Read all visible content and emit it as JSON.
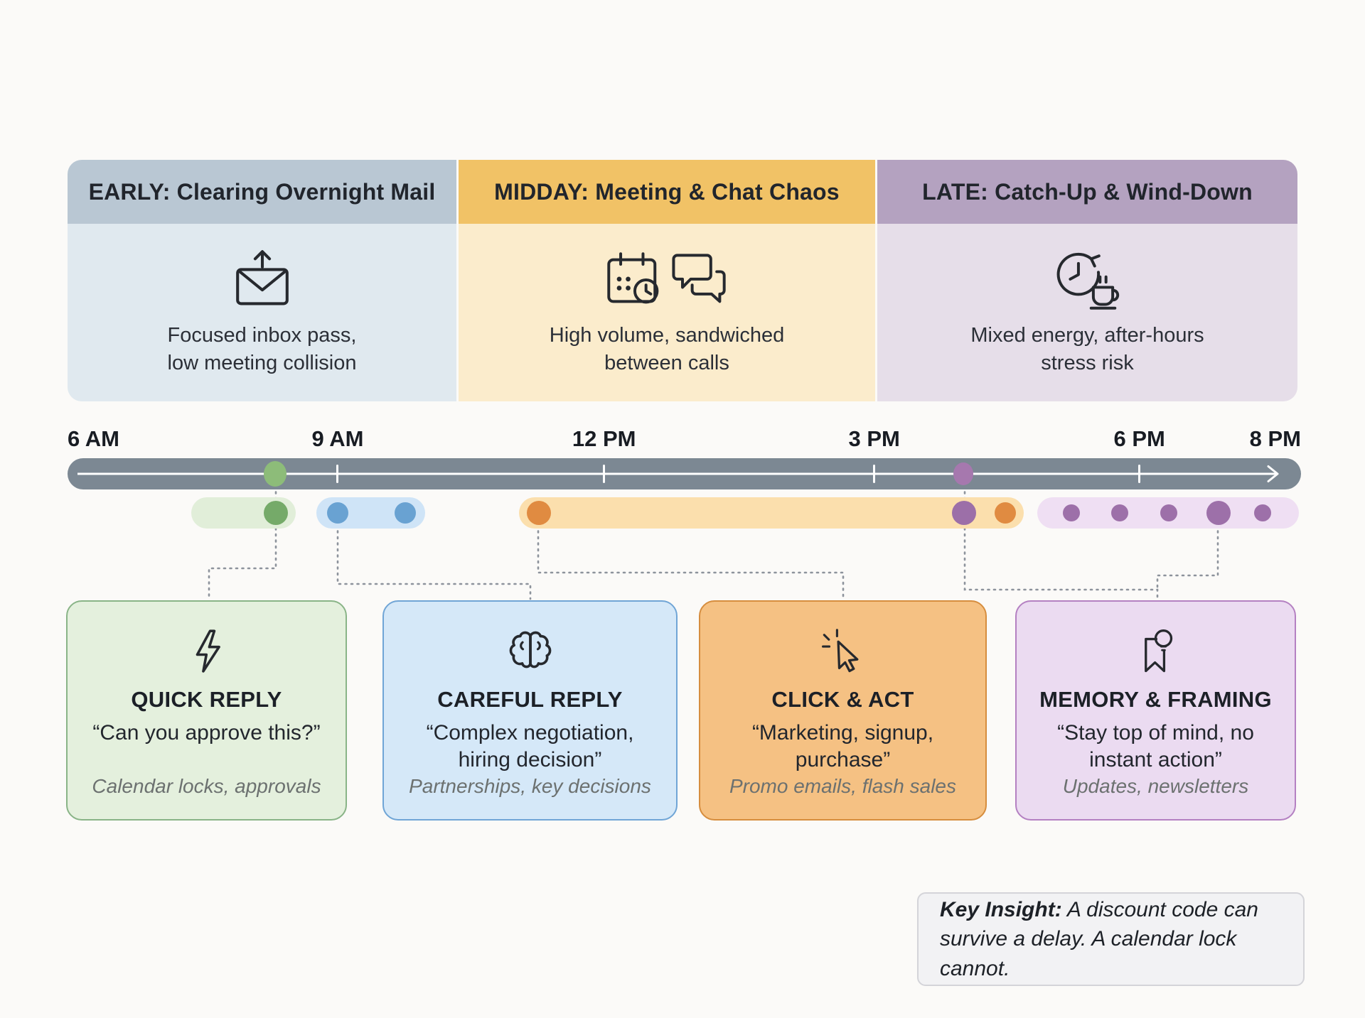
{
  "sections": [
    {
      "title": "EARLY: Clearing Overnight Mail",
      "icon": "mail-send-icon",
      "line1": "Focused inbox pass,",
      "line2": "low meeting collision",
      "header_color": "#b9c7d3",
      "body_color": "#e0e9ef"
    },
    {
      "title": "MIDDAY: Meeting & Chat Chaos",
      "icon": "calendar-clock-chat-icon",
      "line1": "High volume, sandwiched",
      "line2": "between calls",
      "header_color": "#f1c266",
      "body_color": "#fbeccc"
    },
    {
      "title": "LATE: Catch-Up & Wind-Down",
      "icon": "clock-coffee-icon",
      "line1": "Mixed energy, after-hours",
      "line2": "stress risk",
      "header_color": "#b4a2c0",
      "body_color": "#e6dee9"
    }
  ],
  "timeline": {
    "bar_color": "#7c8893",
    "labels": [
      {
        "text": "6 AM",
        "pct": 0,
        "align": "left"
      },
      {
        "text": "9 AM",
        "pct": 21.9,
        "align": "center"
      },
      {
        "text": "12 PM",
        "pct": 43.5,
        "align": "center"
      },
      {
        "text": "3 PM",
        "pct": 65.4,
        "align": "center"
      },
      {
        "text": "6 PM",
        "pct": 86.9,
        "align": "center"
      },
      {
        "text": "8 PM",
        "pct": 100,
        "align": "right"
      }
    ],
    "ticks_pct": [
      21.9,
      43.5,
      65.4,
      86.9
    ],
    "bar_markers": [
      {
        "pct": 16.9,
        "color": "#8dbc79",
        "size": "l"
      },
      {
        "pct": 72.7,
        "color": "#a678ae",
        "size": "m"
      }
    ],
    "pills": [
      {
        "name": "quick-reply-window",
        "start_pct": 10.0,
        "end_pct": 18.5,
        "color": "#e1eed9",
        "dots": [
          {
            "pct": 16.9,
            "color": "#75aa69",
            "size": "l"
          }
        ]
      },
      {
        "name": "careful-reply-window",
        "start_pct": 20.2,
        "end_pct": 29.0,
        "color": "#cfe4f7",
        "dots": [
          {
            "pct": 21.9,
            "color": "#69a2d2",
            "size": "m"
          },
          {
            "pct": 27.4,
            "color": "#69a2d2",
            "size": "m"
          }
        ]
      },
      {
        "name": "click-act-window",
        "start_pct": 36.6,
        "end_pct": 77.5,
        "color": "#fbdfad",
        "dots": [
          {
            "pct": 38.2,
            "color": "#e08b41",
            "size": "l"
          },
          {
            "pct": 72.7,
            "color": "#9c6fa8",
            "size": "l"
          },
          {
            "pct": 76.0,
            "color": "#e08b41",
            "size": "m"
          }
        ]
      },
      {
        "name": "memory-framing-window",
        "start_pct": 78.6,
        "end_pct": 99.8,
        "color": "#efdff3",
        "dots": [
          {
            "pct": 81.4,
            "color": "#9d70a9",
            "size": "s"
          },
          {
            "pct": 85.3,
            "color": "#9d70a9",
            "size": "s"
          },
          {
            "pct": 89.3,
            "color": "#9d70a9",
            "size": "s"
          },
          {
            "pct": 93.3,
            "color": "#9d70a9",
            "size": "l"
          },
          {
            "pct": 96.9,
            "color": "#9d70a9",
            "size": "s"
          }
        ]
      }
    ]
  },
  "cards": [
    {
      "title": "QUICK REPLY",
      "icon": "lightning-bolt-icon",
      "quote1": "“Can you approve this?”",
      "quote2": "",
      "subtext": "Calendar locks, approvals",
      "bg": "#e4f0dd",
      "border": "#89b487"
    },
    {
      "title": "CAREFUL REPLY",
      "icon": "brain-icon",
      "quote1": "“Complex negotiation,",
      "quote2": "hiring decision”",
      "subtext": "Partnerships, key decisions",
      "bg": "#d5e8f8",
      "border": "#70a5d6"
    },
    {
      "title": "CLICK & ACT",
      "icon": "cursor-click-icon",
      "quote1": "“Marketing, signup,",
      "quote2": "purchase”",
      "subtext": "Promo emails, flash sales",
      "bg": "#f5c183",
      "border": "#d68d3e"
    },
    {
      "title": "MEMORY & FRAMING",
      "icon": "bookmark-bulb-icon",
      "quote1": "“Stay top of mind, no",
      "quote2": "instant action”",
      "subtext": "Updates, newsletters",
      "bg": "#ebdbf1",
      "border": "#b480c2"
    }
  ],
  "insight": {
    "label": "Key Insight:",
    "line1_rest": " A discount code can",
    "line2": "survive a delay. A calendar lock cannot."
  }
}
